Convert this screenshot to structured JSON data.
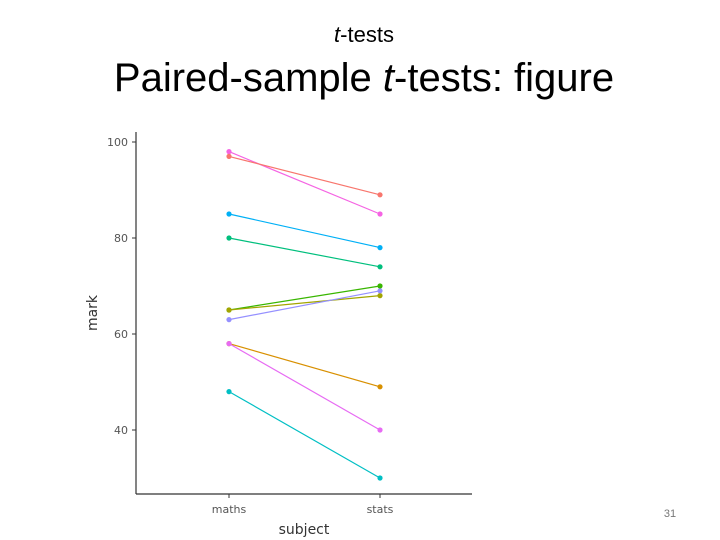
{
  "slide": {
    "subtitle_italic": "t",
    "subtitle_rest": "-tests",
    "title_pre": "Paired-sample ",
    "title_italic": "t",
    "title_post": "-tests: figure",
    "page_number": "31"
  },
  "chart_data": {
    "type": "line",
    "categories": [
      "maths",
      "stats"
    ],
    "xlabel": "subject",
    "ylabel": "mark",
    "ylim": [
      28,
      102
    ],
    "yticks": [
      40,
      60,
      80,
      100
    ],
    "grid": false,
    "legend": "none",
    "series": [
      {
        "values": [
          98,
          85
        ],
        "color": "#F564E3"
      },
      {
        "values": [
          97,
          89
        ],
        "color": "#F8766D"
      },
      {
        "values": [
          85,
          78
        ],
        "color": "#00B0F6"
      },
      {
        "values": [
          80,
          74
        ],
        "color": "#00BF7D"
      },
      {
        "values": [
          65,
          70
        ],
        "color": "#39B600"
      },
      {
        "values": [
          65,
          68
        ],
        "color": "#A3A500"
      },
      {
        "values": [
          63,
          69
        ],
        "color": "#9590FF"
      },
      {
        "values": [
          58,
          49
        ],
        "color": "#D89000"
      },
      {
        "values": [
          58,
          40
        ],
        "color": "#E76BF3"
      },
      {
        "values": [
          48,
          30
        ],
        "color": "#00BFC4"
      }
    ]
  }
}
